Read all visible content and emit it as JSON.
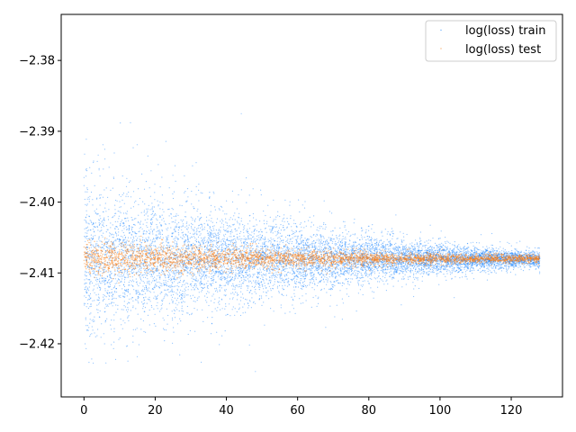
{
  "chart_data": {
    "type": "scatter",
    "title": "",
    "xlabel": "",
    "ylabel": "",
    "xlim": [
      -6.4,
      134.4
    ],
    "ylim": [
      -2.4275,
      -2.3735
    ],
    "x_ticks": [
      0,
      20,
      40,
      60,
      80,
      100,
      120
    ],
    "x_tick_labels": [
      "0",
      "20",
      "40",
      "60",
      "80",
      "100",
      "120"
    ],
    "y_ticks": [
      -2.38,
      -2.39,
      -2.4,
      -2.41,
      -2.42
    ],
    "y_tick_labels": [
      "−2.38",
      "−2.39",
      "−2.40",
      "−2.41",
      "−2.42"
    ],
    "grid": false,
    "legend_position": "top-right",
    "series": [
      {
        "name": "log(loss) train",
        "color": "#0a7dff",
        "x_range": [
          0,
          128
        ],
        "center": -2.408,
        "spread_at_start": 0.0055,
        "spread_at_end": 0.0006,
        "extreme_range_at_start": [
          -2.4245,
          -2.376
        ]
      },
      {
        "name": "log(loss) test",
        "color": "#f5821f",
        "x_range": [
          0,
          128
        ],
        "center": -2.408,
        "spread_at_start": 0.0012,
        "spread_at_end": 0.0003
      }
    ]
  }
}
